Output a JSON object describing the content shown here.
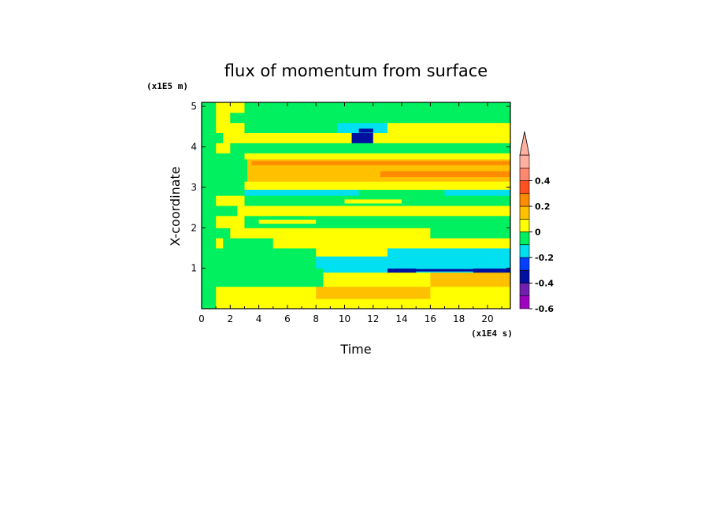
{
  "chart_data": {
    "type": "heatmap",
    "title": "flux of momentum from surface",
    "xlabel": "Time",
    "ylabel": "X-coordinate",
    "x_unit": "(x1E4 s)",
    "y_unit": "(x1E5 m)",
    "xlim": [
      0,
      21.6
    ],
    "ylim": [
      0,
      5.1
    ],
    "x_ticks": [
      "0",
      "2",
      "4",
      "6",
      "8",
      "10",
      "12",
      "14",
      "16",
      "18",
      "20"
    ],
    "y_ticks": [
      "1",
      "2",
      "3",
      "4",
      "5"
    ],
    "colorbar": {
      "levels": [
        "-0.6",
        "-0.4",
        "-0.2",
        "0",
        "0.2",
        "0.4"
      ],
      "colors": [
        "#a000c0",
        "#7020b0",
        "#0010a0",
        "#0040ff",
        "#00e0f0",
        "#00f060",
        "#ffff00",
        "#ffc000",
        "#ff8c00",
        "#ff5020",
        "#ff8870",
        "#ffb0a0"
      ],
      "extend": "max"
    },
    "bands": [
      {
        "y0": 0.0,
        "y1": 0.25,
        "segs": [
          [
            0,
            21.6,
            "#ffff00"
          ]
        ]
      },
      {
        "y0": 0.25,
        "y1": 0.55,
        "segs": [
          [
            0,
            8,
            "#ffff00"
          ],
          [
            8,
            16,
            "#ffc000"
          ],
          [
            16,
            21.6,
            "#ffff00"
          ]
        ]
      },
      {
        "y0": 0.55,
        "y1": 0.9,
        "segs": [
          [
            0,
            3,
            "#00f060"
          ],
          [
            3,
            8.5,
            "#00f060"
          ],
          [
            8.5,
            16,
            "#ffff00"
          ],
          [
            16,
            21.6,
            "#ffc000"
          ]
        ]
      },
      {
        "y0": 0.9,
        "y1": 1.0,
        "segs": [
          [
            0,
            8.5,
            "#00f060"
          ],
          [
            8.5,
            13,
            "#00e0f0"
          ],
          [
            13,
            15,
            "#0010a0"
          ],
          [
            15,
            19,
            "#00e0f0"
          ],
          [
            19,
            21.6,
            "#0010a0"
          ]
        ]
      },
      {
        "y0": 1.0,
        "y1": 1.3,
        "segs": [
          [
            0,
            8,
            "#00f060"
          ],
          [
            8,
            21.6,
            "#00e0f0"
          ]
        ]
      },
      {
        "y0": 1.3,
        "y1": 1.5,
        "segs": [
          [
            0,
            8,
            "#00f060"
          ],
          [
            8,
            13,
            "#ffff00"
          ],
          [
            13,
            21.6,
            "#00e0f0"
          ]
        ]
      },
      {
        "y0": 1.5,
        "y1": 1.75,
        "segs": [
          [
            0,
            1.5,
            "#ffff00"
          ],
          [
            1.5,
            5,
            "#00f060"
          ],
          [
            5,
            21.6,
            "#ffff00"
          ]
        ]
      },
      {
        "y0": 1.75,
        "y1": 2.0,
        "segs": [
          [
            0,
            2,
            "#00f060"
          ],
          [
            2,
            16,
            "#ffff00"
          ],
          [
            16,
            21.6,
            "#00f060"
          ]
        ]
      },
      {
        "y0": 2.0,
        "y1": 2.3,
        "segs": [
          [
            0,
            3,
            "#ffff00"
          ],
          [
            3,
            21.6,
            "#00f060"
          ]
        ]
      },
      {
        "y0": 2.3,
        "y1": 2.55,
        "segs": [
          [
            0,
            2.5,
            "#00f060"
          ],
          [
            2.5,
            21.6,
            "#ffff00"
          ]
        ]
      },
      {
        "y0": 2.55,
        "y1": 2.8,
        "segs": [
          [
            0,
            3,
            "#ffff00"
          ],
          [
            3,
            21.6,
            "#00f060"
          ]
        ]
      },
      {
        "y0": 2.8,
        "y1": 2.95,
        "segs": [
          [
            0,
            3,
            "#00f060"
          ],
          [
            3,
            11,
            "#00e0f0"
          ],
          [
            11,
            17,
            "#00f060"
          ],
          [
            17,
            21.6,
            "#00e0f0"
          ]
        ]
      },
      {
        "y0": 2.95,
        "y1": 3.15,
        "segs": [
          [
            0,
            3,
            "#00f060"
          ],
          [
            3,
            21.6,
            "#ffff00"
          ]
        ]
      },
      {
        "y0": 3.15,
        "y1": 3.7,
        "segs": [
          [
            0,
            3.2,
            "#00f060"
          ],
          [
            3.2,
            21.6,
            "#ffc000"
          ]
        ]
      },
      {
        "y0": 3.7,
        "y1": 3.85,
        "segs": [
          [
            0,
            3,
            "#00f060"
          ],
          [
            3,
            21.6,
            "#ffff00"
          ]
        ]
      },
      {
        "y0": 3.85,
        "y1": 4.1,
        "segs": [
          [
            0,
            2,
            "#ffff00"
          ],
          [
            2,
            21.6,
            "#00f060"
          ]
        ]
      },
      {
        "y0": 4.1,
        "y1": 4.35,
        "segs": [
          [
            0,
            1.5,
            "#00f060"
          ],
          [
            1.5,
            10.5,
            "#ffff00"
          ],
          [
            10.5,
            12,
            "#0010a0"
          ],
          [
            12,
            21.6,
            "#ffff00"
          ]
        ]
      },
      {
        "y0": 4.35,
        "y1": 4.6,
        "segs": [
          [
            0,
            3,
            "#ffff00"
          ],
          [
            3,
            9.5,
            "#00f060"
          ],
          [
            9.5,
            13,
            "#00e0f0"
          ],
          [
            13,
            21.6,
            "#ffff00"
          ]
        ]
      },
      {
        "y0": 4.6,
        "y1": 4.85,
        "segs": [
          [
            0,
            2,
            "#ffff00"
          ],
          [
            2,
            21.6,
            "#00f060"
          ]
        ]
      },
      {
        "y0": 4.85,
        "y1": 5.1,
        "segs": [
          [
            0,
            3,
            "#ffff00"
          ],
          [
            3,
            21.6,
            "#00f060"
          ]
        ]
      }
    ],
    "extra": [
      {
        "x0": 12.5,
        "x1": 21.6,
        "y0": 3.25,
        "y1": 3.4,
        "color": "#ff8c00"
      },
      {
        "x0": 3.5,
        "x1": 21.6,
        "y0": 3.55,
        "y1": 3.65,
        "color": "#ff8c00"
      },
      {
        "x0": 14,
        "x1": 21.6,
        "y0": 0.92,
        "y1": 0.98,
        "color": "#0010a0"
      },
      {
        "x0": 11,
        "x1": 12,
        "y0": 4.35,
        "y1": 4.45,
        "color": "#0010a0"
      },
      {
        "x0": 15,
        "x1": 21.6,
        "y0": 1.22,
        "y1": 1.3,
        "color": "#00e0f0"
      },
      {
        "x0": 0,
        "x1": 1,
        "y0": 0,
        "y1": 5.1,
        "color": "#00f060"
      },
      {
        "x0": 4,
        "x1": 8,
        "y0": 2.1,
        "y1": 2.2,
        "color": "#ffff00"
      },
      {
        "x0": 10,
        "x1": 14,
        "y0": 2.6,
        "y1": 2.7,
        "color": "#ffff00"
      }
    ]
  }
}
